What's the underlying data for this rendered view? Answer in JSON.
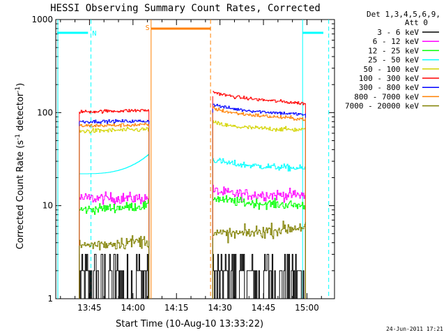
{
  "chart_data": {
    "type": "line",
    "title": "HESSI Observing Summary Count Rates, Corrected",
    "xlabel": "Start Time (10-Aug-10 13:33:22)",
    "ylabel": "Corrected Count Rate (s⁻¹ detector⁻¹)",
    "ylabel_main": "Corrected Count Rate (s",
    "ylabel_mid": " detector",
    "ylabel_end": ")",
    "ylabel_sup": "-1",
    "yscale": "log",
    "ylim": [
      1,
      1000
    ],
    "xlim": [
      "13:33:22",
      "15:09:30"
    ],
    "x_ticks": [
      "13:45",
      "14:00",
      "14:15",
      "14:30",
      "14:45",
      "15:00"
    ],
    "y_ticks": [
      "1",
      "10",
      "100",
      "1000"
    ],
    "legend_title_1": "Det 1,3,4,5,6,9,",
    "legend_title_2": "Att 0",
    "legend_position": "right",
    "footer": "24-Jun-2011 17:21",
    "data_windows": [
      [
        "13:41:30",
        "14:05:30"
      ],
      [
        "14:27:30",
        "14:59:30"
      ]
    ],
    "series": [
      {
        "name": "3 - 6 keV",
        "color": "#000000",
        "values_window1": [
          2,
          2
        ],
        "values_window2": [
          3,
          2
        ]
      },
      {
        "name": "6 - 12 keV",
        "color": "#ff00ff",
        "values_window1": [
          12,
          12
        ],
        "values_window2": [
          13,
          13
        ]
      },
      {
        "name": "12 - 25 keV",
        "color": "#00ff00",
        "values_window1": [
          9,
          10
        ],
        "values_window2": [
          11,
          10
        ]
      },
      {
        "name": "25 - 50 keV",
        "color": "#00ffff",
        "values_window1": [
          22,
          36
        ],
        "values_window2": [
          28,
          25
        ]
      },
      {
        "name": "50 - 100 keV",
        "color": "#d4d400",
        "values_window1": [
          63,
          66
        ],
        "values_window2": [
          70,
          65
        ]
      },
      {
        "name": "100 - 300 keV",
        "color": "#ff0000",
        "values_window1": [
          102,
          106
        ],
        "values_window2": [
          150,
          125
        ]
      },
      {
        "name": "300 - 800 keV",
        "color": "#0000ff",
        "values_window1": [
          80,
          81
        ],
        "values_window2": [
          110,
          95
        ]
      },
      {
        "name": "800 - 7000 keV",
        "color": "#ff8000",
        "values_window1": [
          72,
          74
        ],
        "values_window2": [
          100,
          85
        ]
      },
      {
        "name": "7000 - 20000 keV",
        "color": "#808000",
        "values_window1": [
          3.7,
          4.2
        ],
        "values_window2": [
          4.5,
          6
        ]
      }
    ],
    "annotations": [
      {
        "text": "N",
        "color": "#00ffff"
      },
      {
        "text": "S",
        "color": "#ff8000"
      }
    ]
  }
}
